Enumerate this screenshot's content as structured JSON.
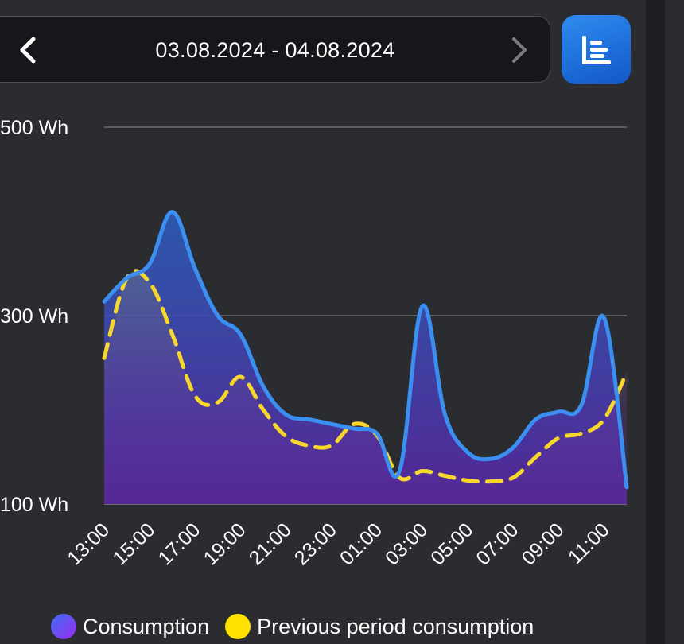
{
  "header": {
    "date_range": "03.08.2024 - 04.08.2024",
    "prev_icon": "chevron-left-icon",
    "next_icon": "chevron-right-icon",
    "view_icon": "list-view-icon",
    "accent_color": "#1e6fe0"
  },
  "chart_data": {
    "type": "area",
    "y_axis": {
      "min": 100,
      "max": 500,
      "unit": "Wh",
      "ticks": [
        {
          "value": 500,
          "label": "500 Wh"
        },
        {
          "value": 300,
          "label": "300 Wh"
        },
        {
          "value": 100,
          "label": "100 Wh"
        }
      ]
    },
    "x_ticks": [
      "13:00",
      "15:00",
      "17:00",
      "19:00",
      "21:00",
      "23:00",
      "01:00",
      "03:00",
      "05:00",
      "07:00",
      "09:00",
      "11:00"
    ],
    "grid": true,
    "legend_position": "bottom",
    "series": [
      {
        "name": "Consumption",
        "color": "#3b8ff0",
        "style": "solid",
        "x": [
          "13:00",
          "14:00",
          "15:00",
          "16:00",
          "17:00",
          "18:00",
          "19:00",
          "20:00",
          "21:00",
          "22:00",
          "23:00",
          "00:00",
          "01:00",
          "02:00",
          "03:00",
          "04:00",
          "05:00",
          "06:00",
          "07:00",
          "08:00",
          "09:00",
          "10:00",
          "11:00",
          "12:00"
        ],
        "values": [
          315,
          340,
          355,
          410,
          350,
          300,
          280,
          225,
          195,
          190,
          185,
          180,
          175,
          135,
          310,
          195,
          155,
          148,
          160,
          190,
          198,
          205,
          298,
          118
        ]
      },
      {
        "name": "Previous period consumption",
        "color": "#f7d72c",
        "style": "dashed",
        "x": [
          "13:00",
          "14:00",
          "15:00",
          "16:00",
          "17:00",
          "18:00",
          "19:00",
          "20:00",
          "21:00",
          "22:00",
          "23:00",
          "00:00",
          "01:00",
          "02:00",
          "03:00",
          "04:00",
          "05:00",
          "06:00",
          "07:00",
          "08:00",
          "09:00",
          "10:00",
          "11:00",
          "12:00"
        ],
        "values": [
          255,
          340,
          335,
          280,
          215,
          208,
          235,
          200,
          172,
          162,
          162,
          185,
          173,
          128,
          135,
          130,
          125,
          124,
          128,
          150,
          170,
          175,
          190,
          240
        ]
      }
    ]
  },
  "legend": {
    "items": [
      {
        "label": "Consumption",
        "color_start": "#3d6ef5",
        "color_end": "#9b2bf0"
      },
      {
        "label": "Previous period consumption",
        "color_start": "#ffe200",
        "color_end": "#ffe200"
      }
    ]
  }
}
